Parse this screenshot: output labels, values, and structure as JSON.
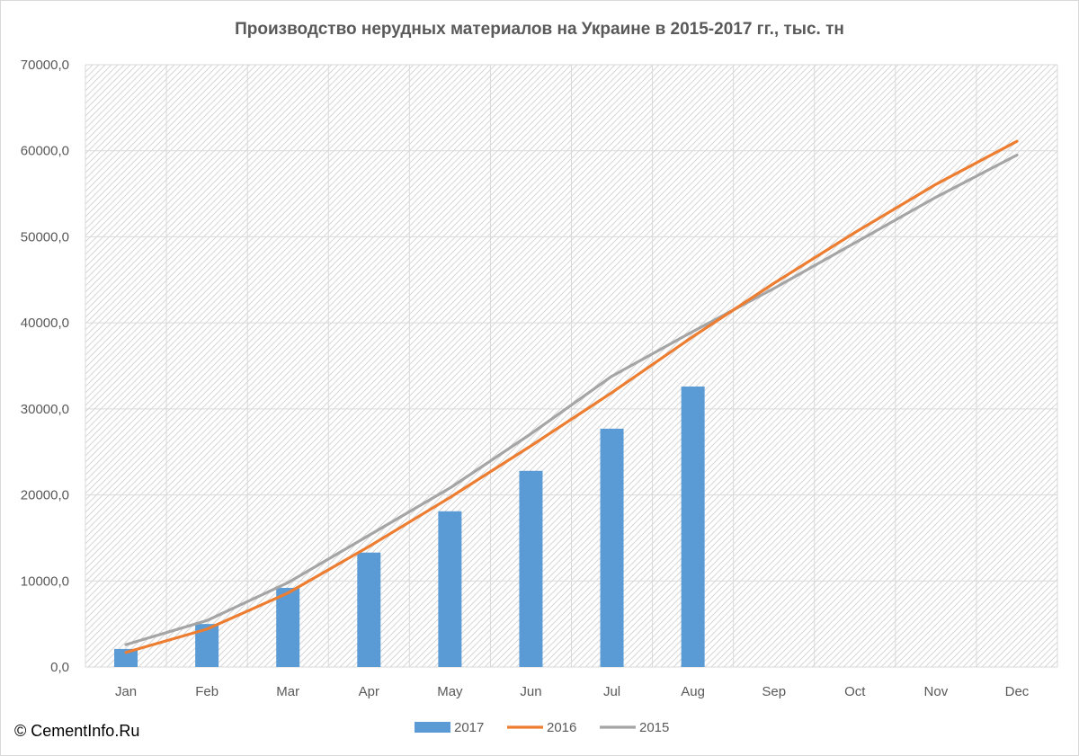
{
  "chart_data": {
    "type": "bar",
    "title": "Производство нерудных материалов на Украине в 2015-2017 гг., тыс. тн",
    "categories": [
      "Jan",
      "Feb",
      "Mar",
      "Apr",
      "May",
      "Jun",
      "Jul",
      "Aug",
      "Sep",
      "Oct",
      "Nov",
      "Dec"
    ],
    "y_ticks": [
      "0,0",
      "10000,0",
      "20000,0",
      "30000,0",
      "40000,0",
      "50000,0",
      "60000,0",
      "70000,0"
    ],
    "ylim": [
      0,
      70000
    ],
    "grid": true,
    "legend_position": "bottom",
    "series": [
      {
        "name": "2017",
        "type": "bar",
        "color": "#5b9bd5",
        "values": [
          2100,
          5000,
          9200,
          13300,
          18100,
          22800,
          27700,
          32600,
          null,
          null,
          null,
          null
        ]
      },
      {
        "name": "2016",
        "type": "line",
        "color": "#ed7d31",
        "values": [
          1700,
          4400,
          8600,
          14000,
          19700,
          25700,
          31900,
          38400,
          44600,
          50500,
          56100,
          61100
        ]
      },
      {
        "name": "2015",
        "type": "line",
        "color": "#a5a5a5",
        "values": [
          2600,
          5400,
          9800,
          15300,
          20800,
          27100,
          33800,
          39000,
          44000,
          49300,
          54600,
          59500
        ]
      }
    ]
  },
  "credit": "© CementInfo.Ru"
}
